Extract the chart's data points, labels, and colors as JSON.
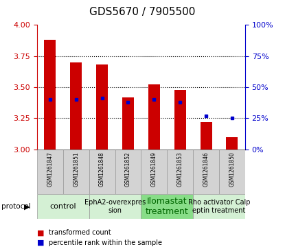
{
  "title": "GDS5670 / 7905500",
  "samples": [
    "GSM1261847",
    "GSM1261851",
    "GSM1261848",
    "GSM1261852",
    "GSM1261849",
    "GSM1261853",
    "GSM1261846",
    "GSM1261850"
  ],
  "transformed_counts": [
    3.88,
    3.7,
    3.68,
    3.42,
    3.52,
    3.48,
    3.22,
    3.1
  ],
  "percentile_ranks": [
    40,
    40,
    41,
    38,
    40,
    38,
    27,
    25
  ],
  "ylim_left": [
    3.0,
    4.0
  ],
  "ylim_right": [
    0,
    100
  ],
  "yticks_left": [
    3.0,
    3.25,
    3.5,
    3.75,
    4.0
  ],
  "yticks_right": [
    0,
    25,
    50,
    75,
    100
  ],
  "bar_color": "#cc0000",
  "dot_color": "#0000cc",
  "bar_bottom": 3.0,
  "protocol_groups": [
    {
      "label": "control",
      "cols": [
        0,
        1
      ],
      "color": "#d4f0d4",
      "text_color": "#000000",
      "fontsize": 8
    },
    {
      "label": "EphA2-overexpres\nsion",
      "cols": [
        2,
        3
      ],
      "color": "#d4f0d4",
      "text_color": "#000000",
      "fontsize": 7
    },
    {
      "label": "Ilomastat\ntreatment",
      "cols": [
        4,
        5
      ],
      "color": "#88dd88",
      "text_color": "#006600",
      "fontsize": 9
    },
    {
      "label": "Rho activator Calp\neptin treatment",
      "cols": [
        6,
        7
      ],
      "color": "#d4f0d4",
      "text_color": "#000000",
      "fontsize": 7
    }
  ],
  "legend_bar_label": "transformed count",
  "legend_dot_label": "percentile rank within the sample",
  "tick_color_left": "#cc0000",
  "tick_color_right": "#0000cc",
  "gridline_ticks": [
    3.25,
    3.5,
    3.75
  ]
}
